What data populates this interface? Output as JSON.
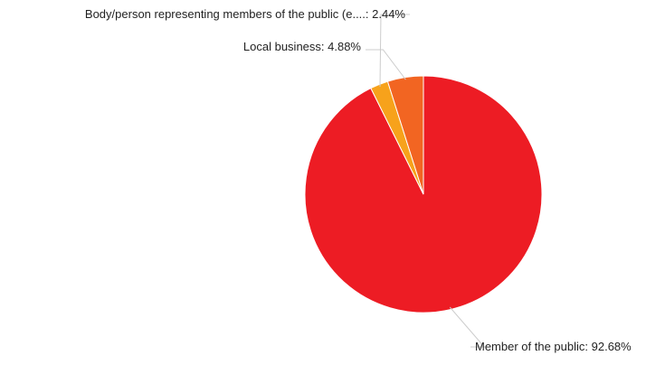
{
  "chart_data": {
    "type": "pie",
    "title": "",
    "slices": [
      {
        "label": "Member of the public",
        "value": 92.68,
        "display": "Member of the public: 92.68%",
        "color": "#ed1c24"
      },
      {
        "label": "Body/person representing members of the public (e....",
        "value": 2.44,
        "display": "Body/person representing members of the public (e....: 2.44%",
        "color": "#f7a21b"
      },
      {
        "label": "Local business",
        "value": 4.88,
        "display": "Local business: 4.88%",
        "color": "#f26522"
      }
    ],
    "start_angle": "12 o'clock",
    "direction": "clockwise"
  }
}
